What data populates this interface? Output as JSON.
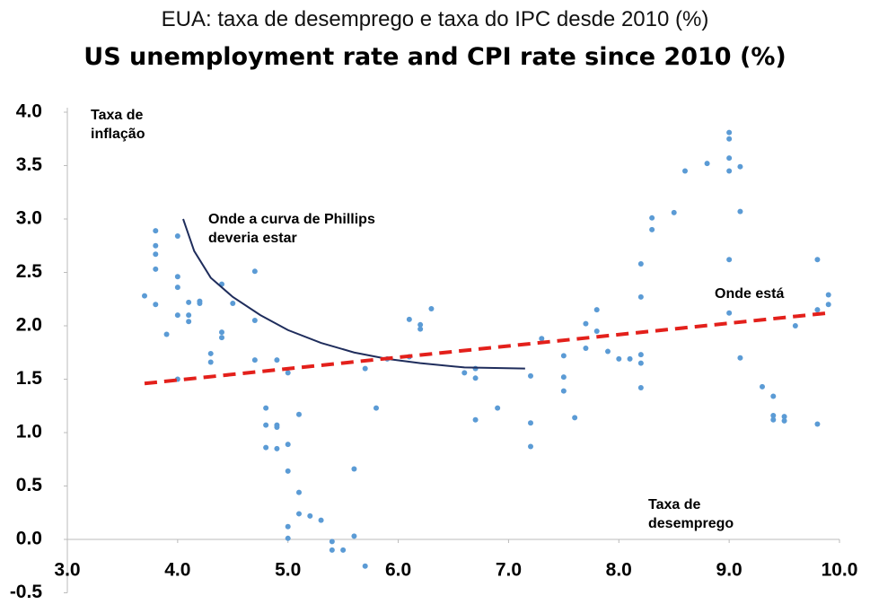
{
  "chart_data": {
    "type": "scatter",
    "title": "EUA: taxa de desemprego e taxa do IPC desde 2010 (%)",
    "subtitle": "US unemployment rate and CPI rate since 2010 (%)",
    "ylabel": "Taxa de inflação",
    "xlabel": "Taxa de desemprego",
    "annotations": [
      "Onde a curva de Phillips deveria estar",
      "Onde está"
    ],
    "xlim": [
      3.0,
      10.0
    ],
    "ylim": [
      -0.5,
      4.0
    ],
    "xticks": [
      {
        "value": 3,
        "label": "3.0"
      },
      {
        "value": 4,
        "label": "4.0"
      },
      {
        "value": 5,
        "label": "5.0"
      },
      {
        "value": 6,
        "label": "6.0"
      },
      {
        "value": 7,
        "label": "7.0"
      },
      {
        "value": 8,
        "label": "8.0"
      },
      {
        "value": 9,
        "label": "9.0"
      },
      {
        "value": 10,
        "label": "10.0"
      }
    ],
    "yticks": [
      {
        "value": -0.5,
        "label": "-0.5"
      },
      {
        "value": 0,
        "label": "0.0"
      },
      {
        "value": 0.5,
        "label": "0.5"
      },
      {
        "value": 1,
        "label": "1.0"
      },
      {
        "value": 1.5,
        "label": "1.5"
      },
      {
        "value": 2,
        "label": "2.0"
      },
      {
        "value": 2.5,
        "label": "2.5"
      },
      {
        "value": 3,
        "label": "3.0"
      },
      {
        "value": 3.5,
        "label": "3.5"
      },
      {
        "value": 4,
        "label": "4.0"
      }
    ],
    "series": [
      {
        "color": "#5b9bd5",
        "x": [
          3.7,
          3.8,
          3.8,
          3.8,
          3.8,
          3.8,
          3.9,
          4.0,
          4.0,
          4.0,
          4.0,
          4.0,
          4.1,
          4.1,
          4.1,
          4.2,
          4.2,
          4.3,
          4.3,
          4.4,
          4.4,
          4.4,
          4.5,
          4.7,
          4.7,
          4.7,
          4.8,
          4.8,
          4.8,
          4.9,
          4.9,
          4.9,
          4.9,
          5.0,
          5.0,
          5.0,
          5.0,
          5.0,
          5.1,
          5.1,
          5.1,
          5.2,
          5.3,
          5.4,
          5.4,
          5.5,
          5.6,
          5.6,
          5.7,
          5.7,
          5.8,
          5.9,
          6.1,
          6.1,
          6.2,
          6.2,
          6.3,
          6.6,
          6.7,
          6.7,
          6.7,
          6.9,
          7.2,
          7.2,
          7.2,
          7.3,
          7.5,
          7.5,
          7.5,
          7.6,
          7.7,
          7.7,
          7.8,
          7.8,
          7.9,
          8.0,
          8.1,
          8.2,
          8.2,
          8.2,
          8.2,
          8.2,
          8.3,
          8.3,
          8.5,
          8.6,
          8.8,
          9.0,
          9.0,
          9.0,
          9.0,
          9.0,
          9.0,
          9.1,
          9.1,
          9.1,
          9.3,
          9.4,
          9.4,
          9.4,
          9.5,
          9.5,
          9.6,
          9.8,
          9.8,
          9.8,
          9.9,
          9.9
        ],
        "values": [
          2.28,
          2.89,
          2.75,
          2.67,
          2.53,
          2.2,
          1.92,
          2.84,
          2.46,
          2.36,
          2.1,
          1.5,
          2.22,
          2.1,
          2.04,
          2.23,
          2.21,
          1.74,
          1.66,
          2.39,
          1.94,
          1.89,
          2.21,
          2.51,
          2.05,
          1.68,
          1.23,
          1.07,
          0.86,
          1.68,
          1.07,
          1.05,
          0.85,
          1.56,
          0.89,
          0.64,
          0.12,
          0.01,
          1.17,
          0.44,
          0.24,
          0.22,
          0.18,
          -0.02,
          -0.1,
          -0.1,
          0.66,
          0.03,
          1.6,
          -0.25,
          1.23,
          1.69,
          2.06,
          1.71,
          2.01,
          1.97,
          2.16,
          1.56,
          1.6,
          1.51,
          1.12,
          1.23,
          1.53,
          1.09,
          0.87,
          1.88,
          1.72,
          1.52,
          1.39,
          1.14,
          2.02,
          1.79,
          2.15,
          1.95,
          1.76,
          1.69,
          1.69,
          2.58,
          2.27,
          1.73,
          1.65,
          1.42,
          3.01,
          2.9,
          3.06,
          3.45,
          3.52,
          3.81,
          3.75,
          3.57,
          3.45,
          2.62,
          2.12,
          3.49,
          3.07,
          1.7,
          1.43,
          1.34,
          1.16,
          1.12,
          1.15,
          1.11,
          2.0,
          2.62,
          2.15,
          1.08,
          2.29,
          2.2
        ]
      }
    ],
    "lines": [
      {
        "color": "#1f2d5c",
        "dash": false,
        "x": [
          4.05,
          4.15,
          4.3,
          4.5,
          4.75,
          5.0,
          5.3,
          5.6,
          5.9,
          6.2,
          6.6,
          7.15
        ],
        "values": [
          3.0,
          2.7,
          2.45,
          2.27,
          2.1,
          1.96,
          1.84,
          1.75,
          1.69,
          1.65,
          1.61,
          1.6
        ]
      },
      {
        "color": "#e3201b",
        "dash": true,
        "x": [
          3.7,
          9.9
        ],
        "values": [
          1.46,
          2.12
        ]
      }
    ]
  }
}
